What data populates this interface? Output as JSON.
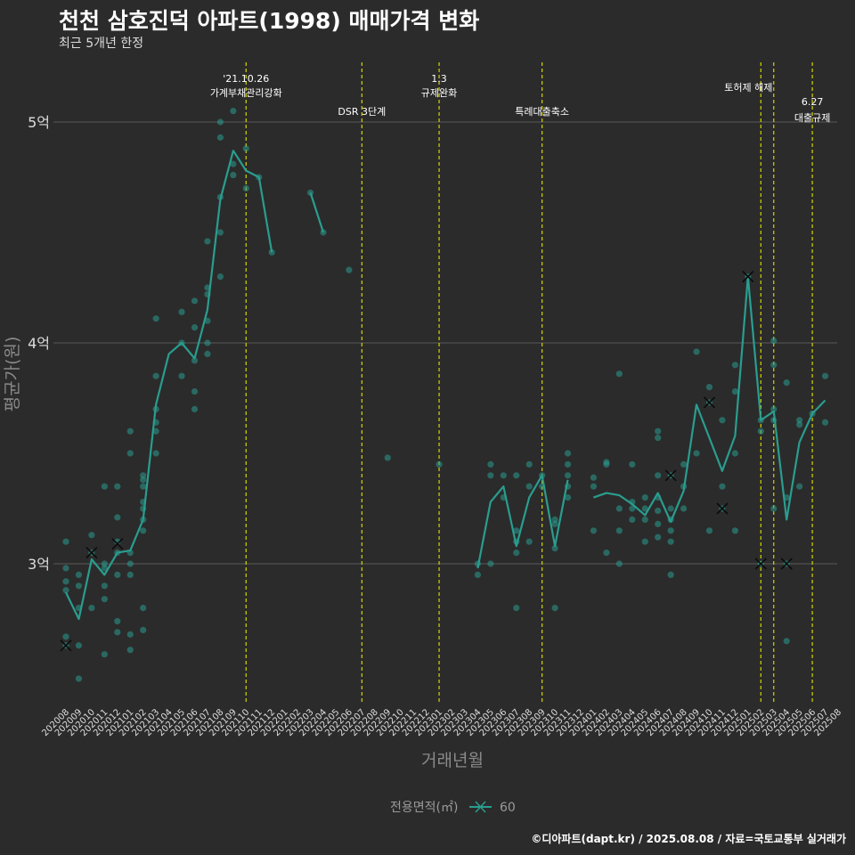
{
  "title": "천천 삼호진덕 아파트(1998) 매매가격 변화",
  "subtitle": "최근 5개년 한정",
  "caption": "©디아파트(dapt.kr) / 2025.08.08 / 자료=국토교통부 실거래가",
  "colors": {
    "background": "#2b2b2b",
    "series": "#2a9d8f",
    "vline": "#d4d400",
    "grid": "#5a5a5a"
  },
  "chart_data": {
    "type": "line",
    "xlabel": "거래년월",
    "ylabel": "평균가(원)",
    "ylim": [
      2.4,
      5.3
    ],
    "yticks": [
      {
        "value": 3,
        "label": "3억"
      },
      {
        "value": 4,
        "label": "4억"
      },
      {
        "value": 5,
        "label": "5억"
      }
    ],
    "categories": [
      "202008",
      "202009",
      "202010",
      "202011",
      "202012",
      "202101",
      "202102",
      "202103",
      "202104",
      "202105",
      "202106",
      "202107",
      "202108",
      "202109",
      "202110",
      "202111",
      "202112",
      "202201",
      "202202",
      "202203",
      "202204",
      "202205",
      "202206",
      "202207",
      "202208",
      "202209",
      "202210",
      "202211",
      "202212",
      "202301",
      "202302",
      "202303",
      "202304",
      "202305",
      "202306",
      "202307",
      "202308",
      "202309",
      "202310",
      "202311",
      "202312",
      "202401",
      "202402",
      "202403",
      "202404",
      "202405",
      "202406",
      "202407",
      "202408",
      "202409",
      "202410",
      "202411",
      "202412",
      "202501",
      "202502",
      "202503",
      "202504",
      "202505",
      "202506",
      "202507",
      "202508"
    ],
    "legend": {
      "title": "전용면적(㎡)",
      "position": "bottom"
    },
    "series": [
      {
        "name": "60",
        "segments": [
          [
            [
              "202008",
              2.87
            ],
            [
              "202009",
              2.75
            ],
            [
              "202010",
              3.02
            ],
            [
              "202011",
              2.95
            ],
            [
              "202012",
              3.05
            ],
            [
              "202101",
              3.06
            ],
            [
              "202102",
              3.2
            ],
            [
              "202103",
              3.72
            ],
            [
              "202104",
              3.95
            ],
            [
              "202105",
              4.0
            ],
            [
              "202106",
              3.93
            ],
            [
              "202107",
              4.15
            ],
            [
              "202108",
              4.65
            ],
            [
              "202109",
              4.87
            ],
            [
              "202110",
              4.78
            ],
            [
              "202111",
              4.75
            ],
            [
              "202112",
              4.41
            ]
          ],
          [
            [
              "202203",
              4.68
            ],
            [
              "202204",
              4.5
            ]
          ],
          [
            [
              "202304",
              2.98
            ],
            [
              "202305",
              3.28
            ],
            [
              "202306",
              3.35
            ],
            [
              "202307",
              3.08
            ],
            [
              "202308",
              3.3
            ],
            [
              "202309",
              3.4
            ],
            [
              "202310",
              3.08
            ],
            [
              "202311",
              3.38
            ]
          ],
          [
            [
              "202401",
              3.3
            ],
            [
              "202402",
              3.32
            ],
            [
              "202403",
              3.31
            ],
            [
              "202404",
              3.27
            ],
            [
              "202405",
              3.22
            ],
            [
              "202406",
              3.32
            ],
            [
              "202407",
              3.19
            ],
            [
              "202408",
              3.33
            ],
            [
              "202409",
              3.72
            ],
            [
              "202410",
              3.57
            ],
            [
              "202411",
              3.42
            ],
            [
              "202412",
              3.58
            ],
            [
              "202501",
              4.3
            ],
            [
              "202502",
              3.65
            ],
            [
              "202503",
              3.69
            ],
            [
              "202504",
              3.2
            ],
            [
              "202505",
              3.55
            ],
            [
              "202506",
              3.68
            ],
            [
              "202507",
              3.74
            ]
          ]
        ],
        "points": [
          [
            "202008",
            2.63
          ],
          [
            "202008",
            2.67
          ],
          [
            "202008",
            2.88
          ],
          [
            "202008",
            2.92
          ],
          [
            "202008",
            2.98
          ],
          [
            "202008",
            3.1
          ],
          [
            "202009",
            2.48
          ],
          [
            "202009",
            2.63
          ],
          [
            "202009",
            2.8
          ],
          [
            "202009",
            2.9
          ],
          [
            "202009",
            2.95
          ],
          [
            "202010",
            2.8
          ],
          [
            "202010",
            3.05
          ],
          [
            "202010",
            3.13
          ],
          [
            "202011",
            2.59
          ],
          [
            "202011",
            2.84
          ],
          [
            "202011",
            2.9
          ],
          [
            "202011",
            2.98
          ],
          [
            "202011",
            3.0
          ],
          [
            "202011",
            3.35
          ],
          [
            "202012",
            2.69
          ],
          [
            "202012",
            2.74
          ],
          [
            "202012",
            2.95
          ],
          [
            "202012",
            3.05
          ],
          [
            "202012",
            3.1
          ],
          [
            "202012",
            3.21
          ],
          [
            "202012",
            3.35
          ],
          [
            "202101",
            2.61
          ],
          [
            "202101",
            2.68
          ],
          [
            "202101",
            2.95
          ],
          [
            "202101",
            3.0
          ],
          [
            "202101",
            3.05
          ],
          [
            "202101",
            3.5
          ],
          [
            "202101",
            3.6
          ],
          [
            "202102",
            2.7
          ],
          [
            "202102",
            2.8
          ],
          [
            "202102",
            3.15
          ],
          [
            "202102",
            3.2
          ],
          [
            "202102",
            3.25
          ],
          [
            "202102",
            3.28
          ],
          [
            "202102",
            3.35
          ],
          [
            "202102",
            3.38
          ],
          [
            "202102",
            3.4
          ],
          [
            "202103",
            3.5
          ],
          [
            "202103",
            3.6
          ],
          [
            "202103",
            3.64
          ],
          [
            "202103",
            3.7
          ],
          [
            "202103",
            3.85
          ],
          [
            "202103",
            4.11
          ],
          [
            "202105",
            3.85
          ],
          [
            "202105",
            4.0
          ],
          [
            "202105",
            4.14
          ],
          [
            "202106",
            3.7
          ],
          [
            "202106",
            3.78
          ],
          [
            "202106",
            3.92
          ],
          [
            "202106",
            4.07
          ],
          [
            "202106",
            4.19
          ],
          [
            "202107",
            3.95
          ],
          [
            "202107",
            4.0
          ],
          [
            "202107",
            4.1
          ],
          [
            "202107",
            4.22
          ],
          [
            "202107",
            4.25
          ],
          [
            "202107",
            4.46
          ],
          [
            "202108",
            4.3
          ],
          [
            "202108",
            4.5
          ],
          [
            "202108",
            4.66
          ],
          [
            "202108",
            4.93
          ],
          [
            "202108",
            5.0
          ],
          [
            "202109",
            4.76
          ],
          [
            "202109",
            4.81
          ],
          [
            "202109",
            5.05
          ],
          [
            "202110",
            4.7
          ],
          [
            "202110",
            4.88
          ],
          [
            "202111",
            4.75
          ],
          [
            "202112",
            4.41
          ],
          [
            "202203",
            4.68
          ],
          [
            "202204",
            4.5
          ],
          [
            "202206",
            4.33
          ],
          [
            "202209",
            3.48
          ],
          [
            "202301",
            3.45
          ],
          [
            "202304",
            2.95
          ],
          [
            "202304",
            3.0
          ],
          [
            "202305",
            3.0
          ],
          [
            "202305",
            3.4
          ],
          [
            "202305",
            3.45
          ],
          [
            "202306",
            3.3
          ],
          [
            "202306",
            3.4
          ],
          [
            "202307",
            2.8
          ],
          [
            "202307",
            3.05
          ],
          [
            "202307",
            3.1
          ],
          [
            "202307",
            3.15
          ],
          [
            "202307",
            3.4
          ],
          [
            "202308",
            3.1
          ],
          [
            "202308",
            3.35
          ],
          [
            "202308",
            3.45
          ],
          [
            "202309",
            3.35
          ],
          [
            "202309",
            3.4
          ],
          [
            "202310",
            2.8
          ],
          [
            "202310",
            3.07
          ],
          [
            "202310",
            3.18
          ],
          [
            "202310",
            3.2
          ],
          [
            "202311",
            3.3
          ],
          [
            "202311",
            3.35
          ],
          [
            "202311",
            3.4
          ],
          [
            "202311",
            3.45
          ],
          [
            "202311",
            3.5
          ],
          [
            "202401",
            3.15
          ],
          [
            "202401",
            3.35
          ],
          [
            "202401",
            3.39
          ],
          [
            "202402",
            3.05
          ],
          [
            "202402",
            3.45
          ],
          [
            "202402",
            3.46
          ],
          [
            "202403",
            3.0
          ],
          [
            "202403",
            3.15
          ],
          [
            "202403",
            3.25
          ],
          [
            "202403",
            3.86
          ],
          [
            "202404",
            3.2
          ],
          [
            "202404",
            3.25
          ],
          [
            "202404",
            3.28
          ],
          [
            "202404",
            3.45
          ],
          [
            "202405",
            3.1
          ],
          [
            "202405",
            3.2
          ],
          [
            "202405",
            3.25
          ],
          [
            "202405",
            3.3
          ],
          [
            "202406",
            3.12
          ],
          [
            "202406",
            3.18
          ],
          [
            "202406",
            3.24
          ],
          [
            "202406",
            3.3
          ],
          [
            "202406",
            3.4
          ],
          [
            "202406",
            3.57
          ],
          [
            "202406",
            3.6
          ],
          [
            "202407",
            2.95
          ],
          [
            "202407",
            3.1
          ],
          [
            "202407",
            3.15
          ],
          [
            "202407",
            3.2
          ],
          [
            "202407",
            3.25
          ],
          [
            "202407",
            3.4
          ],
          [
            "202408",
            3.25
          ],
          [
            "202408",
            3.35
          ],
          [
            "202408",
            3.45
          ],
          [
            "202409",
            3.5
          ],
          [
            "202409",
            3.96
          ],
          [
            "202410",
            3.15
          ],
          [
            "202410",
            3.73
          ],
          [
            "202410",
            3.8
          ],
          [
            "202411",
            3.25
          ],
          [
            "202411",
            3.35
          ],
          [
            "202411",
            3.65
          ],
          [
            "202412",
            3.15
          ],
          [
            "202412",
            3.5
          ],
          [
            "202412",
            3.78
          ],
          [
            "202412",
            3.9
          ],
          [
            "202501",
            4.3
          ],
          [
            "202502",
            3.0
          ],
          [
            "202502",
            3.6
          ],
          [
            "202502",
            3.65
          ],
          [
            "202503",
            3.25
          ],
          [
            "202503",
            3.65
          ],
          [
            "202503",
            3.7
          ],
          [
            "202503",
            3.9
          ],
          [
            "202503",
            4.01
          ],
          [
            "202504",
            2.65
          ],
          [
            "202504",
            3.0
          ],
          [
            "202504",
            3.3
          ],
          [
            "202504",
            3.82
          ],
          [
            "202505",
            3.35
          ],
          [
            "202505",
            3.63
          ],
          [
            "202505",
            3.65
          ],
          [
            "202506",
            3.68
          ],
          [
            "202507",
            3.64
          ],
          [
            "202507",
            3.85
          ]
        ],
        "crossed": [
          [
            "202008",
            2.63
          ],
          [
            "202010",
            3.05
          ],
          [
            "202012",
            3.09
          ],
          [
            "202407",
            3.4
          ],
          [
            "202410",
            3.73
          ],
          [
            "202411",
            3.25
          ],
          [
            "202501",
            4.3
          ],
          [
            "202502",
            3.0
          ],
          [
            "202504",
            3.0
          ]
        ]
      }
    ],
    "annotations": [
      {
        "x": "202110",
        "lines": [
          "'21.10.26",
          "가계부채관리강화"
        ]
      },
      {
        "x": "202207",
        "lines": [
          "DSR 3단계"
        ]
      },
      {
        "x": "202301",
        "lines": [
          "1.3",
          "규제완화"
        ]
      },
      {
        "x": "202309",
        "lines": [
          "특례대출축소"
        ]
      },
      {
        "x": "202502",
        "lines": [
          "토허제 해제"
        ]
      },
      {
        "x": "202503",
        "lines": [
          ""
        ]
      },
      {
        "x": "202506",
        "lines": [
          "6.27",
          "대출규제"
        ]
      }
    ]
  }
}
